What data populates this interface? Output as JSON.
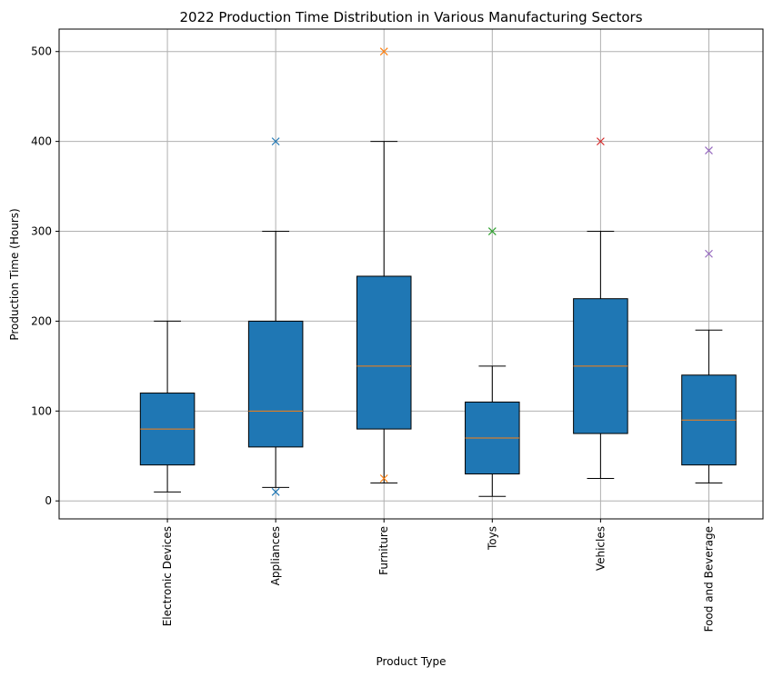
{
  "chart_data": {
    "type": "box",
    "title": "2022 Production Time Distribution in Various Manufacturing Sectors",
    "xlabel": "Product Type",
    "ylabel": "Production Time (Hours)",
    "ylim": [
      -20,
      525
    ],
    "yticks": [
      0,
      100,
      200,
      300,
      400,
      500
    ],
    "grid": true,
    "box_color": "#1f77b4",
    "median_color": "#ff7f0e",
    "categories": [
      "Electronic Devices",
      "Appliances",
      "Furniture",
      "Toys",
      "Vehicles",
      "Food and Beverage"
    ],
    "boxes": [
      {
        "category": "Electronic Devices",
        "min": 10,
        "q1": 40,
        "median": 80,
        "q3": 120,
        "max": 200,
        "outliers": [],
        "outlier_color": "#1f77b4"
      },
      {
        "category": "Appliances",
        "min": 15,
        "q1": 60,
        "median": 100,
        "q3": 200,
        "max": 300,
        "outliers": [
          10,
          400
        ],
        "outlier_color": "#1f77b4"
      },
      {
        "category": "Furniture",
        "min": 20,
        "q1": 80,
        "median": 150,
        "q3": 250,
        "max": 400,
        "outliers": [
          25,
          500
        ],
        "outlier_color": "#ff7f0e"
      },
      {
        "category": "Toys",
        "min": 5,
        "q1": 30,
        "median": 70,
        "q3": 110,
        "max": 150,
        "outliers": [
          300
        ],
        "outlier_color": "#2ca02c"
      },
      {
        "category": "Vehicles",
        "min": 25,
        "q1": 75,
        "median": 150,
        "q3": 225,
        "max": 300,
        "outliers": [
          400
        ],
        "outlier_color": "#d62728"
      },
      {
        "category": "Food and Beverage",
        "min": 20,
        "q1": 40,
        "median": 90,
        "q3": 140,
        "max": 190,
        "outliers": [
          275,
          390
        ],
        "outlier_color": "#9467bd"
      }
    ]
  }
}
